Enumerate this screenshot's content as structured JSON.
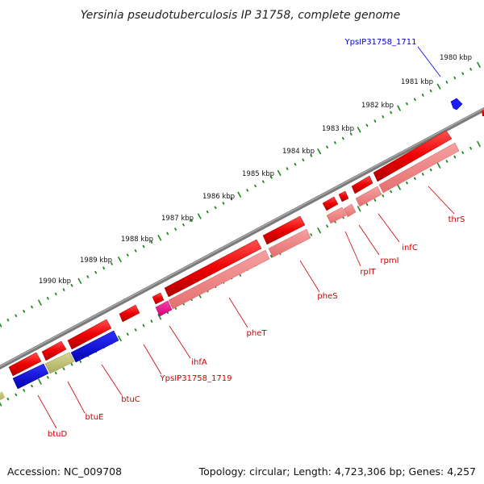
{
  "title": "Yersinia pseudotuberculosis IP 31758, complete genome",
  "footer": {
    "accession": "Accession: NC_009708",
    "summary": "Topology: circular; Length: 4,723,306 bp; Genes: 4,257"
  },
  "colors": {
    "backbone": "#808080",
    "tick": "#1a8a1a",
    "forward_gene": "#ff0000",
    "forward_gene_label": "#cc0000",
    "forward_cds": "#f08080",
    "reverse_gene": "#1a1aff",
    "reverse_gene_label": "#0000cc",
    "pseudo_cds": "#c8c87a",
    "ihf_cds": "#ff1493"
  },
  "kbp_labels": [
    "1980 kbp",
    "1981 kbp",
    "1982 kbp",
    "1983 kbp",
    "1984 kbp",
    "1985 kbp",
    "1986 kbp",
    "1987 kbp",
    "1988 kbp",
    "1989 kbp",
    "1990 kbp"
  ],
  "genes": [
    {
      "name": "YpsIP31758_1711",
      "strand": "reverse"
    },
    {
      "name": "thrS",
      "strand": "forward"
    },
    {
      "name": "infC",
      "strand": "forward"
    },
    {
      "name": "rpmI",
      "strand": "forward"
    },
    {
      "name": "rplT",
      "strand": "forward"
    },
    {
      "name": "pheS",
      "strand": "forward"
    },
    {
      "name": "pheT",
      "strand": "forward"
    },
    {
      "name": "ihfA",
      "strand": "forward"
    },
    {
      "name": "YpsIP31758_1719",
      "strand": "forward"
    },
    {
      "name": "btuC",
      "strand": "forward"
    },
    {
      "name": "btuE",
      "strand": "forward"
    },
    {
      "name": "btuD",
      "strand": "forward"
    }
  ]
}
